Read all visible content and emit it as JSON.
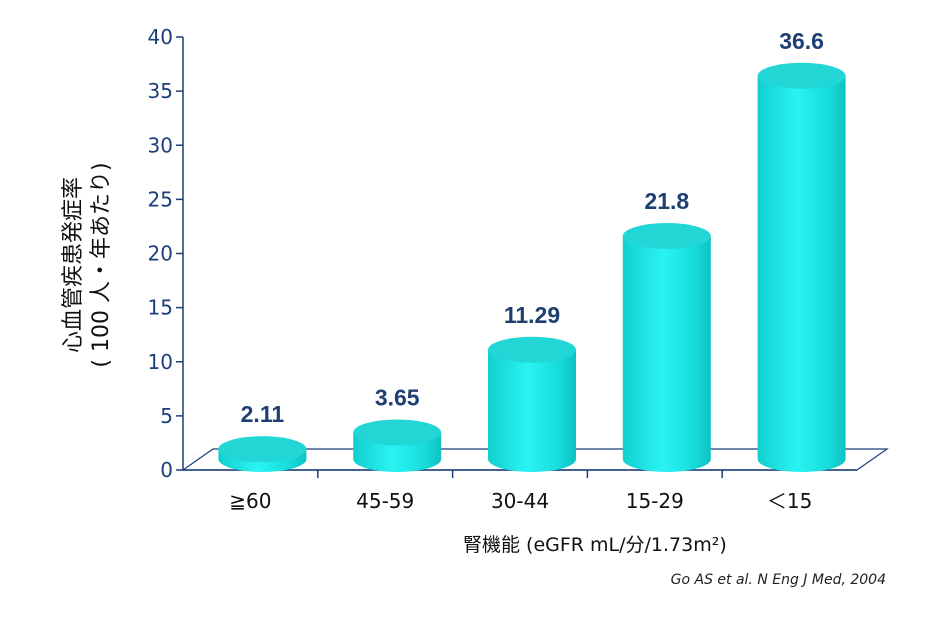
{
  "chart_data": {
    "type": "bar",
    "categories": [
      "≧60",
      "45-59",
      "30-44",
      "15-29",
      "＜15"
    ],
    "values": [
      2.11,
      3.65,
      11.29,
      21.8,
      36.6
    ],
    "value_labels": [
      "2.11",
      "3.65",
      "11.29",
      "21.8",
      "36.6"
    ],
    "ylabel_lines": [
      "心血管疾患発症率",
      "( 100 人・年あたり)"
    ],
    "xlabel": "腎機能 (eGFR mL/分/1.73m²)",
    "ylim": [
      0,
      40
    ],
    "yticks": [
      0,
      5,
      10,
      15,
      20,
      25,
      30,
      35,
      40
    ],
    "bar_color": "#19E5E5",
    "bar_top_color": "#23D6D6",
    "axis_color": "#1B3F7A",
    "value_label_color": "#1F3F73"
  },
  "source": "Go AS et al. N Eng J Med, 2004"
}
